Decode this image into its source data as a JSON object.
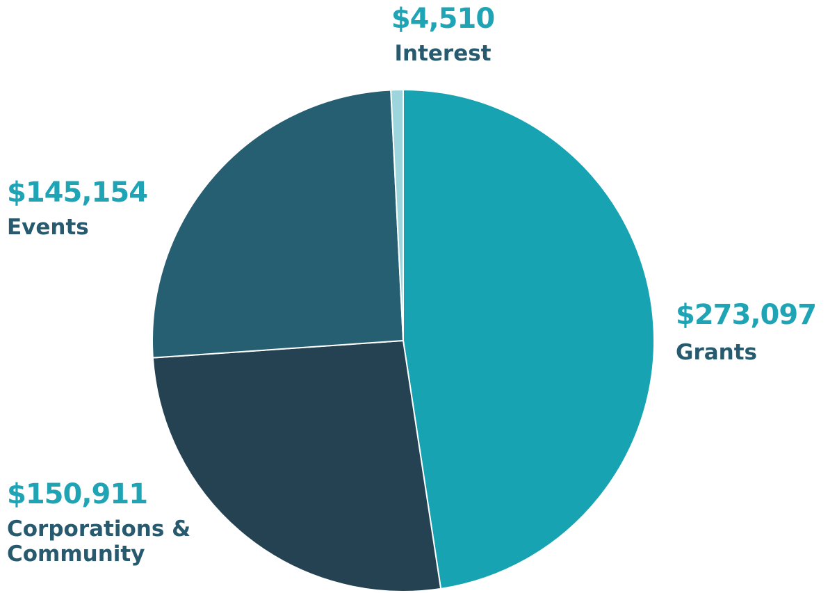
{
  "chart_data": {
    "type": "pie",
    "categories": [
      "Grants",
      "Corporations & Community",
      "Events",
      "Interest"
    ],
    "values": [
      273097,
      150911,
      145154,
      4510
    ],
    "value_labels": [
      "$273,097",
      "$150,911",
      "$145,154",
      "$4,510"
    ],
    "colors": [
      "#17a3b2",
      "#244252",
      "#275f72",
      "#9dd5dd"
    ]
  }
}
